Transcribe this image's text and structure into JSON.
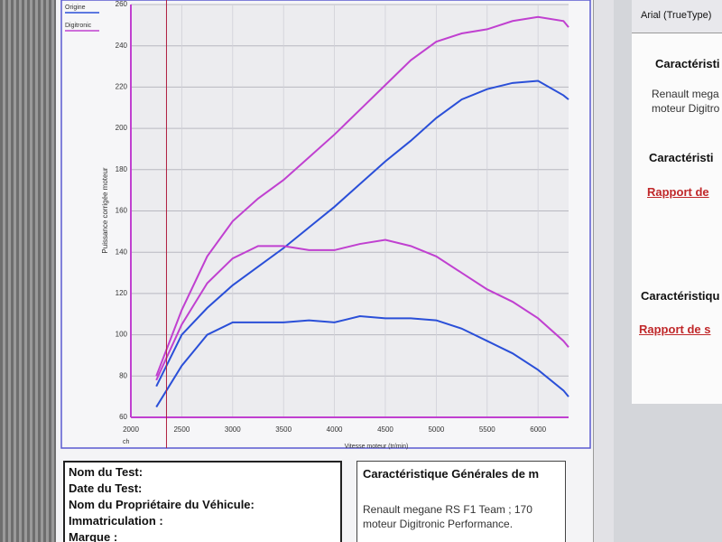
{
  "chart_data": {
    "type": "line",
    "x_label": "Vitesse moteur (tr/min)",
    "y_label": "Puissance corrigée moteur",
    "y_unit": "ch",
    "x": [
      2250,
      2500,
      2750,
      3000,
      3250,
      3500,
      3750,
      4000,
      4250,
      4500,
      4750,
      5000,
      5250,
      5500,
      5750,
      6000,
      6250,
      6300
    ],
    "series": [
      {
        "name": "Origine",
        "color": "#2a4fd8",
        "values": [
          75,
          100,
          113,
          124,
          133,
          142,
          152,
          162,
          173,
          184,
          194,
          205,
          214,
          219,
          222,
          223,
          216,
          214
        ]
      },
      {
        "name": "Digitronic",
        "color": "#c040d0",
        "values": [
          80,
          112,
          138,
          155,
          166,
          175,
          186,
          197,
          209,
          221,
          233,
          242,
          246,
          248,
          252,
          254,
          252,
          249
        ]
      },
      {
        "color": "#c040d0",
        "values": [
          78,
          105,
          125,
          137,
          143,
          143,
          141,
          141,
          144,
          146,
          143,
          138,
          130,
          122,
          116,
          108,
          97,
          94
        ]
      },
      {
        "color": "#2a4fd8",
        "values": [
          65,
          85,
          100,
          106,
          106,
          106,
          107,
          106,
          109,
          108,
          108,
          107,
          103,
          97,
          91,
          83,
          73,
          70
        ]
      }
    ],
    "cursor": 2350,
    "cursor_color": "#b02040",
    "xlim": [
      2000,
      6300
    ],
    "xticks": [
      2000,
      2500,
      3000,
      3500,
      4000,
      4500,
      5000,
      5500,
      6000
    ],
    "ylim": [
      60,
      260
    ],
    "yticks": [
      60,
      80,
      100,
      120,
      140,
      160,
      180,
      200,
      220,
      240,
      260
    ],
    "grid": true,
    "legend": "top-left"
  },
  "info": {
    "fields": [
      "Nom du Test:",
      "Date du Test:",
      "Nom du Propriétaire du Véhicule:",
      "Immatriculation  :",
      "Marque  :"
    ]
  },
  "specs": {
    "title": "Caractéristique Générales de m",
    "lines": [
      "Renault megane RS F1 Team ; 170",
      "moteur Digitronic Performance."
    ]
  },
  "side": {
    "toolbar": "Arial (TrueType)",
    "items": [
      "Caractéristi",
      "Renault mega",
      "moteur Digitro",
      "Caractéristi",
      "Rapport de",
      "Caractéristiqu",
      "Rapport de s"
    ]
  }
}
